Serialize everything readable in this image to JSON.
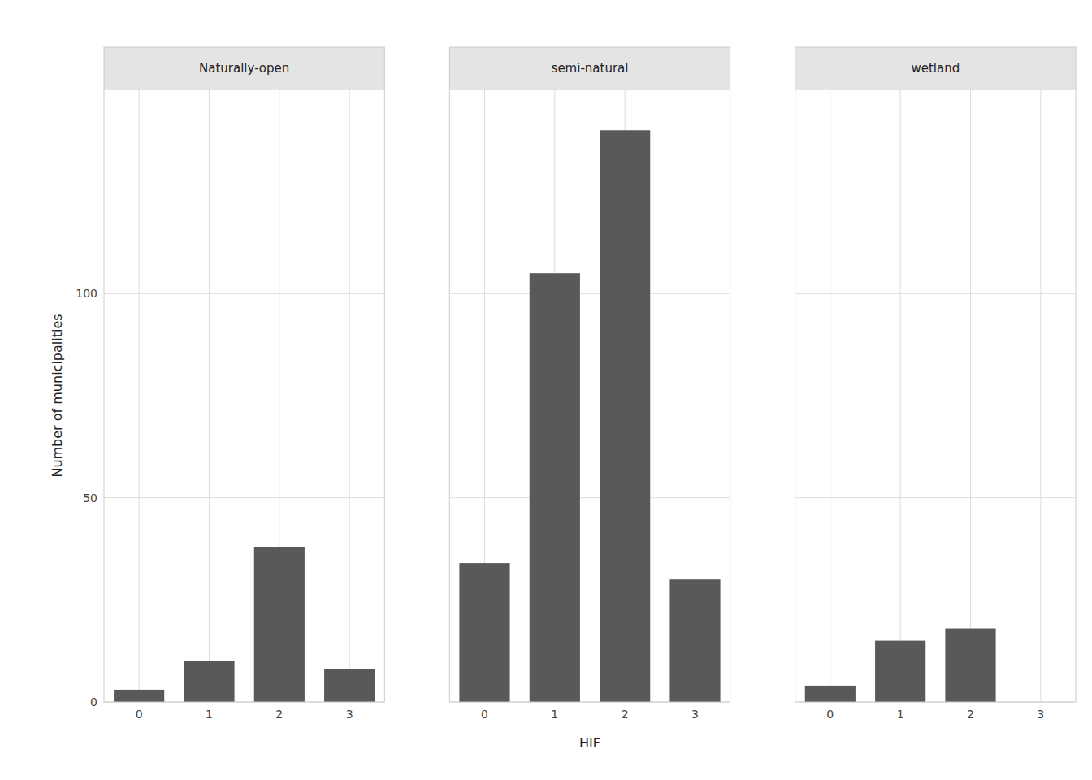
{
  "chart_data": [
    {
      "type": "bar",
      "title": "Naturally-open",
      "x": [
        0,
        1,
        2,
        3
      ],
      "values": [
        3,
        10,
        38,
        8
      ],
      "color": "#595959",
      "xlim": [
        -0.5,
        3.5
      ],
      "xticks": [
        0,
        1,
        2,
        3
      ],
      "ylim": [
        0,
        150
      ],
      "yticks": [
        0,
        50,
        100
      ],
      "grid": true,
      "ylabel": "Number of municipalities"
    },
    {
      "type": "bar",
      "title": "semi-natural",
      "x": [
        0,
        1,
        2,
        3
      ],
      "values": [
        34,
        105,
        140,
        30
      ],
      "color": "#595959",
      "xlim": [
        -0.5,
        3.5
      ],
      "xticks": [
        0,
        1,
        2,
        3
      ],
      "ylim": [
        0,
        150
      ],
      "yticks": [
        0,
        50,
        100
      ],
      "grid": true,
      "tick_labels": "x",
      "xlabel": "HIF"
    },
    {
      "type": "bar",
      "title": "wetland",
      "x": [
        0,
        1,
        2,
        3
      ],
      "values": [
        4,
        15,
        18,
        0
      ],
      "color": "#595959",
      "xlim": [
        -0.5,
        3.5
      ],
      "xticks": [
        0,
        1,
        2,
        3
      ],
      "ylim": [
        0,
        150
      ],
      "yticks": [
        0,
        50,
        100
      ],
      "grid": true,
      "tick_labels": "x"
    }
  ]
}
